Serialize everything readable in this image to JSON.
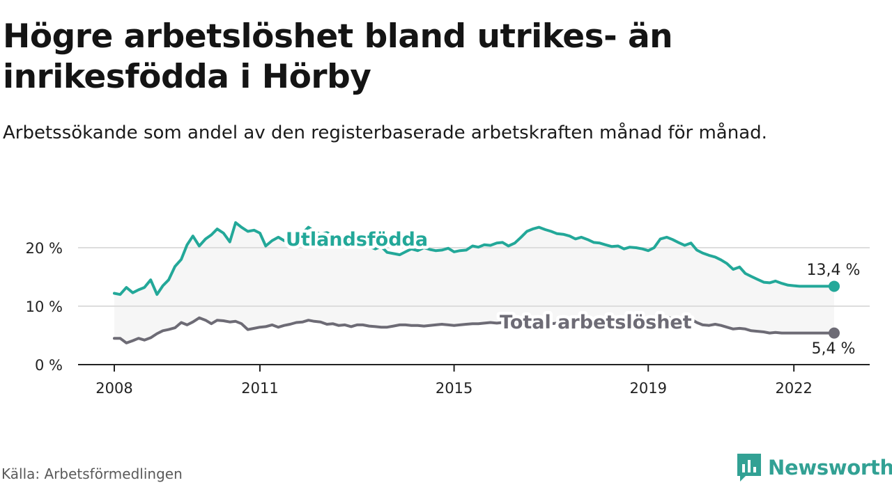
{
  "header": {
    "title": "Högre arbetslöshet bland utrikes- än inrikesfödda i Hörby",
    "subtitle": "Arbetssökande som andel av den registerbaserade arbetskraften månad för månad."
  },
  "footer": {
    "source": "Källa: Arbetsförmedlingen",
    "brand": "Newsworthy"
  },
  "colors": {
    "foreign_born": "#23a899",
    "total": "#6d6b75",
    "band": "#f6f6f6",
    "grid": "#dddddd",
    "axis": "#222222",
    "brand": "#32a194"
  },
  "chart_data": {
    "type": "line",
    "x_unit": "year",
    "xlim": [
      2008,
      2023
    ],
    "ylim": [
      0,
      25
    ],
    "y_ticks": [
      0,
      10,
      20
    ],
    "y_tick_labels": [
      "0 %",
      "10 %",
      "20 %"
    ],
    "x_ticks": [
      2008,
      2011,
      2015,
      2019,
      2022
    ],
    "x_tick_labels": [
      "2008",
      "2011",
      "2015",
      "2019",
      "2022"
    ],
    "grid": true,
    "series": [
      {
        "name": "Utlandsfödda",
        "label": "Utlandsfödda",
        "end_label": "13,4 %",
        "x": [
          2008.0,
          2008.12,
          2008.25,
          2008.38,
          2008.5,
          2008.62,
          2008.75,
          2008.88,
          2009.0,
          2009.12,
          2009.25,
          2009.38,
          2009.5,
          2009.62,
          2009.75,
          2009.88,
          2010.0,
          2010.12,
          2010.25,
          2010.38,
          2010.5,
          2010.62,
          2010.75,
          2010.88,
          2011.0,
          2011.12,
          2011.25,
          2011.38,
          2011.5,
          2011.62,
          2011.75,
          2011.88,
          2012.0,
          2012.12,
          2012.25,
          2012.38,
          2012.5,
          2012.62,
          2012.75,
          2012.88,
          2013.0,
          2013.12,
          2013.25,
          2013.38,
          2013.5,
          2013.62,
          2013.75,
          2013.88,
          2014.0,
          2014.12,
          2014.25,
          2014.38,
          2014.5,
          2014.62,
          2014.75,
          2014.88,
          2015.0,
          2015.12,
          2015.25,
          2015.38,
          2015.5,
          2015.62,
          2015.75,
          2015.88,
          2016.0,
          2016.12,
          2016.25,
          2016.38,
          2016.5,
          2016.62,
          2016.75,
          2016.88,
          2017.0,
          2017.12,
          2017.25,
          2017.38,
          2017.5,
          2017.62,
          2017.75,
          2017.88,
          2018.0,
          2018.12,
          2018.25,
          2018.38,
          2018.5,
          2018.62,
          2018.75,
          2018.88,
          2019.0,
          2019.12,
          2019.25,
          2019.38,
          2019.5,
          2019.62,
          2019.75,
          2019.88,
          2020.0,
          2020.12,
          2020.25,
          2020.38,
          2020.5,
          2020.62,
          2020.75,
          2020.88,
          2021.0,
          2021.12,
          2021.25,
          2021.38,
          2021.5,
          2021.62,
          2021.75,
          2021.88,
          2022.0,
          2022.12,
          2022.25,
          2022.38,
          2022.5,
          2022.62,
          2022.75,
          2022.83
        ],
        "values": [
          12.2,
          12.0,
          13.2,
          12.3,
          12.8,
          13.2,
          14.5,
          12.0,
          13.5,
          14.5,
          16.8,
          18.0,
          20.5,
          22.0,
          20.3,
          21.5,
          22.2,
          23.2,
          22.5,
          21.0,
          24.3,
          23.5,
          22.8,
          23.0,
          22.5,
          20.3,
          21.2,
          21.8,
          21.2,
          21.5,
          21.0,
          22.5,
          23.5,
          22.8,
          22.3,
          22.6,
          22.1,
          21.5,
          21.6,
          21.0,
          21.3,
          20.8,
          20.2,
          19.8,
          20.2,
          19.2,
          19.0,
          18.8,
          19.3,
          19.8,
          19.5,
          20.0,
          19.7,
          19.5,
          19.6,
          19.9,
          19.3,
          19.5,
          19.6,
          20.3,
          20.1,
          20.5,
          20.4,
          20.8,
          20.9,
          20.3,
          20.8,
          21.8,
          22.8,
          23.2,
          23.5,
          23.1,
          22.8,
          22.4,
          22.3,
          22.0,
          21.5,
          21.8,
          21.4,
          20.9,
          20.8,
          20.5,
          20.2,
          20.3,
          19.8,
          20.1,
          20.0,
          19.8,
          19.5,
          20.0,
          21.5,
          21.8,
          21.4,
          20.9,
          20.4,
          20.8,
          19.6,
          19.1,
          18.7,
          18.4,
          17.9,
          17.3,
          16.3,
          16.7,
          15.6,
          15.1,
          14.6,
          14.1,
          14.0,
          14.3,
          13.9,
          13.6,
          13.5,
          13.4,
          13.4,
          13.4,
          13.4,
          13.4,
          13.4,
          13.4
        ]
      },
      {
        "name": "Total arbetslöshet",
        "label": "Total arbetslöshet",
        "end_label": "5,4 %",
        "x": [
          2008.0,
          2008.12,
          2008.25,
          2008.38,
          2008.5,
          2008.62,
          2008.75,
          2008.88,
          2009.0,
          2009.12,
          2009.25,
          2009.38,
          2009.5,
          2009.62,
          2009.75,
          2009.88,
          2010.0,
          2010.12,
          2010.25,
          2010.38,
          2010.5,
          2010.62,
          2010.75,
          2010.88,
          2011.0,
          2011.12,
          2011.25,
          2011.38,
          2011.5,
          2011.62,
          2011.75,
          2011.88,
          2012.0,
          2012.12,
          2012.25,
          2012.38,
          2012.5,
          2012.62,
          2012.75,
          2012.88,
          2013.0,
          2013.12,
          2013.25,
          2013.38,
          2013.5,
          2013.62,
          2013.75,
          2013.88,
          2014.0,
          2014.12,
          2014.25,
          2014.38,
          2014.5,
          2014.62,
          2014.75,
          2014.88,
          2015.0,
          2015.12,
          2015.25,
          2015.38,
          2015.5,
          2015.62,
          2015.75,
          2015.88,
          2016.0,
          2016.12,
          2016.25,
          2016.38,
          2016.5,
          2016.62,
          2016.75,
          2016.88,
          2017.0,
          2017.12,
          2017.25,
          2017.38,
          2017.5,
          2017.62,
          2017.75,
          2017.88,
          2018.0,
          2018.12,
          2018.25,
          2018.38,
          2018.5,
          2018.62,
          2018.75,
          2018.88,
          2019.0,
          2019.12,
          2019.25,
          2019.38,
          2019.5,
          2019.62,
          2019.75,
          2019.88,
          2020.0,
          2020.12,
          2020.25,
          2020.38,
          2020.5,
          2020.62,
          2020.75,
          2020.88,
          2021.0,
          2021.12,
          2021.25,
          2021.38,
          2021.5,
          2021.62,
          2021.75,
          2021.88,
          2022.0,
          2022.12,
          2022.25,
          2022.38,
          2022.5,
          2022.62,
          2022.75,
          2022.83
        ],
        "values": [
          4.5,
          4.5,
          3.7,
          4.1,
          4.5,
          4.2,
          4.6,
          5.3,
          5.8,
          6.0,
          6.3,
          7.2,
          6.8,
          7.3,
          8.0,
          7.6,
          7.0,
          7.6,
          7.5,
          7.3,
          7.4,
          7.0,
          6.0,
          6.2,
          6.4,
          6.5,
          6.8,
          6.4,
          6.7,
          6.9,
          7.2,
          7.3,
          7.6,
          7.4,
          7.3,
          6.9,
          7.0,
          6.7,
          6.8,
          6.5,
          6.8,
          6.8,
          6.6,
          6.5,
          6.4,
          6.4,
          6.6,
          6.8,
          6.8,
          6.7,
          6.7,
          6.6,
          6.7,
          6.8,
          6.9,
          6.8,
          6.7,
          6.8,
          6.9,
          7.0,
          7.0,
          7.1,
          7.2,
          7.1,
          7.2,
          7.3,
          7.2,
          7.1,
          7.0,
          7.0,
          6.9,
          6.9,
          7.0,
          7.1,
          7.2,
          7.1,
          7.0,
          7.1,
          7.0,
          7.0,
          7.1,
          7.1,
          7.0,
          7.0,
          6.9,
          6.9,
          7.0,
          7.0,
          7.1,
          7.0,
          8.0,
          8.1,
          7.9,
          7.6,
          7.9,
          7.8,
          7.2,
          6.8,
          6.7,
          6.9,
          6.7,
          6.4,
          6.1,
          6.2,
          6.1,
          5.8,
          5.7,
          5.6,
          5.4,
          5.5,
          5.4,
          5.4,
          5.4,
          5.4,
          5.4,
          5.4,
          5.4,
          5.4,
          5.4,
          5.4
        ]
      }
    ]
  }
}
